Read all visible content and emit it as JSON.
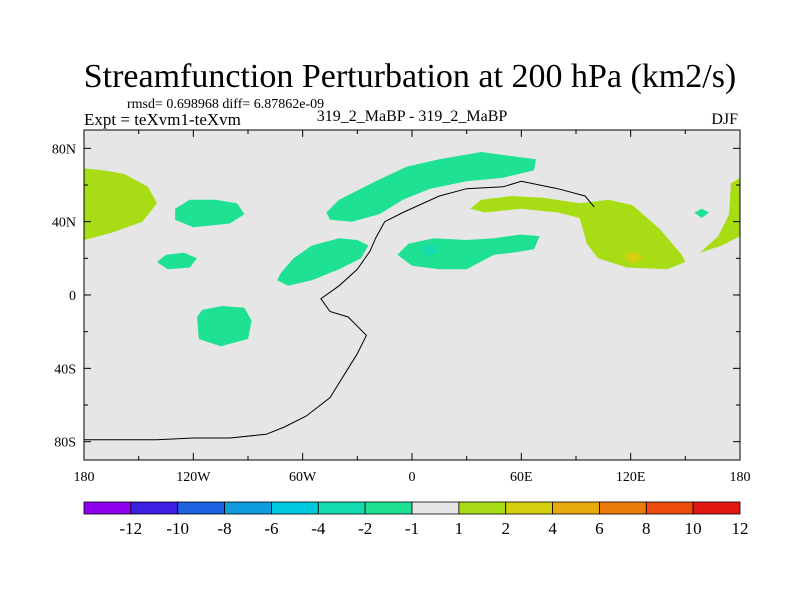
{
  "chart_data": {
    "type": "heatmap",
    "title": "Streamfunction Perturbation at 200 hPa (km2/s)",
    "stats_text": "rmsd= 0.698968 diff= 6.87862e-09",
    "left_label": "Expt = teXvm1-teXvm",
    "center_label": "319_2_MaBP - 319_2_MaBP",
    "right_label": "DJF",
    "xlim": [
      -180,
      180
    ],
    "ylim": [
      -90,
      90
    ],
    "x_ticks": [
      {
        "value": -180,
        "label": "180"
      },
      {
        "value": -120,
        "label": "120W"
      },
      {
        "value": -60,
        "label": "60W"
      },
      {
        "value": 0,
        "label": "0"
      },
      {
        "value": 60,
        "label": "60E"
      },
      {
        "value": 120,
        "label": "120E"
      },
      {
        "value": 180,
        "label": "180"
      }
    ],
    "y_ticks": [
      {
        "value": 80,
        "label": "80N"
      },
      {
        "value": 40,
        "label": "40N"
      },
      {
        "value": 0,
        "label": "0"
      },
      {
        "value": -40,
        "label": "40S"
      },
      {
        "value": -80,
        "label": "80S"
      }
    ],
    "colorbar": {
      "labels": [
        "-12",
        "-10",
        "-8",
        "-6",
        "-4",
        "-2",
        "-1",
        "1",
        "2",
        "4",
        "6",
        "8",
        "10",
        "12"
      ],
      "colors": [
        "#8c00ee",
        "#3c1fe0",
        "#1d60e0",
        "#129ce0",
        "#00c8dd",
        "#14dbb2",
        "#1fe193",
        "#e6e6e6",
        "#a8dd16",
        "#d6cf0d",
        "#e6aa0a",
        "#ec7c09",
        "#ec4b0b",
        "#e11712"
      ]
    },
    "background_color": "#e6e6e6",
    "contour_regions": [
      {
        "name": "atlantic-europe-band",
        "level": "-2 to -1",
        "color": "#1fe193",
        "points": [
          [
            -47,
            45
          ],
          [
            -40,
            52
          ],
          [
            -20,
            62
          ],
          [
            -3,
            70
          ],
          [
            15,
            74
          ],
          [
            38,
            78
          ],
          [
            68,
            74
          ],
          [
            67,
            68
          ],
          [
            50,
            64
          ],
          [
            30,
            62
          ],
          [
            10,
            58
          ],
          [
            -5,
            52
          ],
          [
            -18,
            44
          ],
          [
            -33,
            40
          ],
          [
            -45,
            41
          ]
        ]
      },
      {
        "name": "north-pacific-blob",
        "level": "-2 to -1",
        "color": "#1fe193",
        "points": [
          [
            -130,
            47
          ],
          [
            -122,
            52
          ],
          [
            -108,
            52
          ],
          [
            -96,
            50
          ],
          [
            -92,
            44
          ],
          [
            -100,
            39
          ],
          [
            -120,
            37
          ],
          [
            -130,
            41
          ]
        ]
      },
      {
        "name": "subtropical-pacific-blob",
        "level": "-2 to -1",
        "color": "#1fe193",
        "points": [
          [
            -140,
            18
          ],
          [
            -135,
            22
          ],
          [
            -125,
            23
          ],
          [
            -118,
            20
          ],
          [
            -122,
            15
          ],
          [
            -134,
            14
          ]
        ]
      },
      {
        "name": "atlantic-subtropical-blob",
        "level": "-2 to -1",
        "color": "#1fe193",
        "points": [
          [
            -72,
            12
          ],
          [
            -65,
            20
          ],
          [
            -55,
            27
          ],
          [
            -40,
            31
          ],
          [
            -30,
            30
          ],
          [
            -24,
            27
          ],
          [
            -28,
            20
          ],
          [
            -40,
            14
          ],
          [
            -55,
            8
          ],
          [
            -68,
            5
          ],
          [
            -74,
            8
          ]
        ]
      },
      {
        "name": "africa-asia-band",
        "level": "-2 to -1",
        "color": "#1fe193",
        "points": [
          [
            -8,
            22
          ],
          [
            -2,
            28
          ],
          [
            12,
            31
          ],
          [
            30,
            30
          ],
          [
            45,
            31
          ],
          [
            60,
            33
          ],
          [
            70,
            32
          ],
          [
            67,
            25
          ],
          [
            55,
            23
          ],
          [
            45,
            22
          ],
          [
            30,
            14
          ],
          [
            15,
            14
          ],
          [
            0,
            16
          ]
        ]
      },
      {
        "name": "south-pacific-blob",
        "level": "-2 to -1",
        "color": "#1fe193",
        "points": [
          [
            -118,
            -12
          ],
          [
            -115,
            -8
          ],
          [
            -104,
            -6
          ],
          [
            -92,
            -7
          ],
          [
            -88,
            -14
          ],
          [
            -90,
            -24
          ],
          [
            -105,
            -28
          ],
          [
            -117,
            -24
          ]
        ]
      },
      {
        "name": "east-pacific-small-blob",
        "level": "-2 to -1",
        "color": "#1fe193",
        "points": [
          [
            155,
            45
          ],
          [
            159,
            47
          ],
          [
            163,
            45
          ],
          [
            159,
            42
          ]
        ]
      },
      {
        "name": "africa-center-spot",
        "level": "-4 to -2",
        "color": "#14dbb2",
        "points": [
          [
            7,
            27
          ],
          [
            12,
            27
          ],
          [
            14,
            23
          ],
          [
            9,
            21
          ],
          [
            6,
            23
          ]
        ]
      },
      {
        "name": "north-pacific-positive",
        "level": "1 to 2",
        "color": "#a8dd16",
        "points": [
          [
            -180,
            69
          ],
          [
            -170,
            68
          ],
          [
            -158,
            66
          ],
          [
            -145,
            59
          ],
          [
            -140,
            50
          ],
          [
            -148,
            40
          ],
          [
            -165,
            34
          ],
          [
            -180,
            30
          ]
        ]
      },
      {
        "name": "north-atlantic-positive",
        "level": "1 to 2",
        "color": "#a8dd16",
        "points": [
          [
            -180,
            69
          ],
          [
            -170,
            68
          ],
          [
            -158,
            66
          ],
          [
            -145,
            59
          ],
          [
            -140,
            50
          ],
          [
            -148,
            40
          ],
          [
            -165,
            34
          ],
          [
            -180,
            30
          ]
        ]
      },
      {
        "name": "europe-asia-positive",
        "level": "1 to 2",
        "color": "#a8dd16",
        "points": [
          [
            32,
            47
          ],
          [
            38,
            52
          ],
          [
            55,
            54
          ],
          [
            72,
            53
          ],
          [
            92,
            50
          ],
          [
            108,
            52
          ],
          [
            121,
            49
          ],
          [
            136,
            36
          ],
          [
            148,
            22
          ],
          [
            150,
            18
          ],
          [
            140,
            14
          ],
          [
            118,
            15
          ],
          [
            102,
            20
          ],
          [
            96,
            28
          ],
          [
            92,
            42
          ],
          [
            80,
            45
          ],
          [
            60,
            47
          ],
          [
            40,
            45
          ]
        ]
      },
      {
        "name": "eastern-edge-positive",
        "level": "1 to 2",
        "color": "#a8dd16",
        "points": [
          [
            175,
            61
          ],
          [
            180,
            64
          ],
          [
            180,
            32
          ],
          [
            170,
            27
          ],
          [
            158,
            23
          ],
          [
            168,
            32
          ],
          [
            174,
            44
          ]
        ]
      },
      {
        "name": "asia-center-spot",
        "level": "2 to 4",
        "color": "#d6cf0d",
        "points": [
          [
            117,
            22
          ],
          [
            122,
            24
          ],
          [
            127,
            21
          ],
          [
            122,
            17
          ],
          [
            118,
            19
          ]
        ]
      }
    ],
    "coastlines": [
      [
        [
          -180,
          -79
        ],
        [
          -160,
          -79
        ],
        [
          -140,
          -79
        ],
        [
          -120,
          -78
        ],
        [
          -100,
          -78
        ],
        [
          -80,
          -76
        ],
        [
          -70,
          -72
        ],
        [
          -58,
          -66
        ],
        [
          -45,
          -56
        ],
        [
          -35,
          -40
        ],
        [
          -30,
          -32
        ],
        [
          -25,
          -22
        ],
        [
          -35,
          -12
        ],
        [
          -45,
          -9
        ],
        [
          -50,
          -2
        ],
        [
          -40,
          5
        ],
        [
          -30,
          14
        ],
        [
          -23,
          24
        ],
        [
          -20,
          31
        ],
        [
          -15,
          40
        ],
        [
          -5,
          45
        ],
        [
          15,
          54
        ],
        [
          30,
          58
        ],
        [
          50,
          59
        ],
        [
          60,
          62
        ],
        [
          80,
          58
        ],
        [
          95,
          54
        ],
        [
          100,
          48
        ]
      ]
    ]
  }
}
